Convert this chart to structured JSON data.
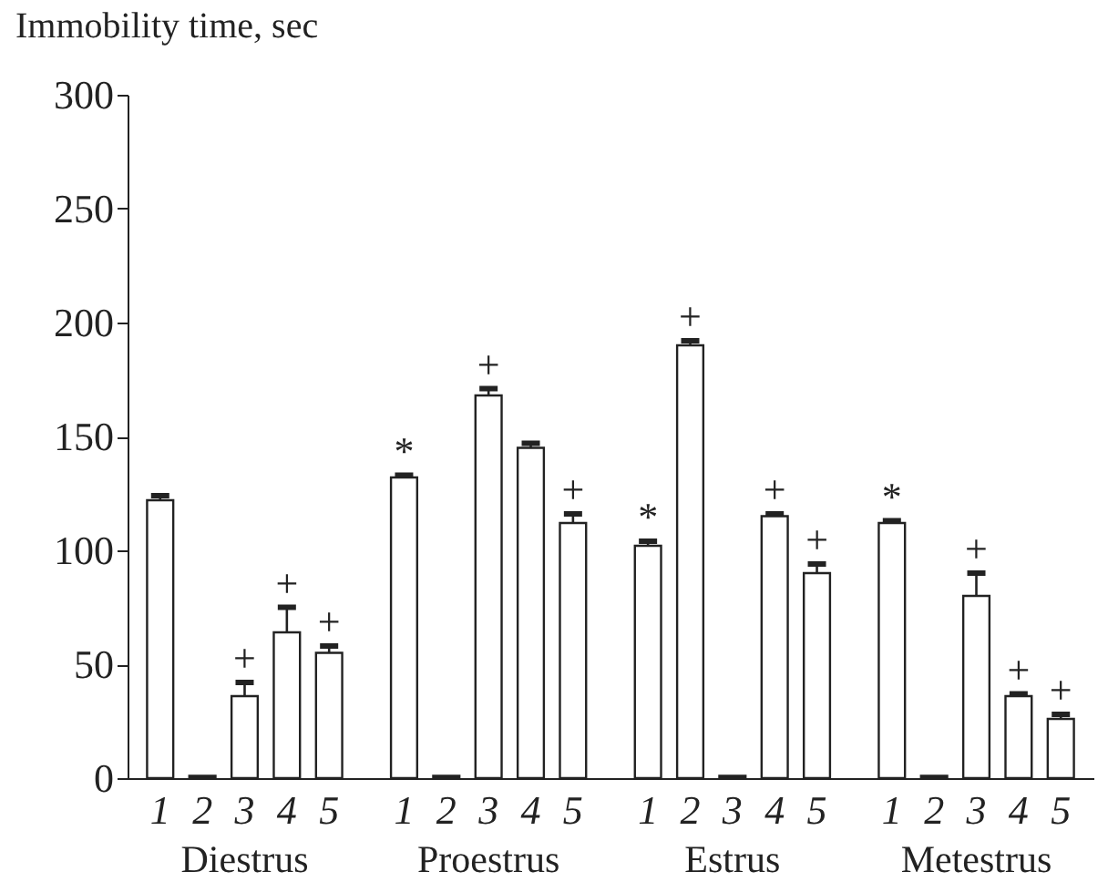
{
  "chart_data": {
    "type": "bar",
    "ylabel": "Immobility time, sec",
    "categories": [
      "Diestrus",
      "Proestrus",
      "Estrus",
      "Metestrus"
    ],
    "series": [
      {
        "name": "1",
        "color": "#ffffff",
        "values": [
          122,
          132,
          102,
          112
        ],
        "errors": [
          2,
          1,
          2,
          1
        ],
        "value_labels": [
          null,
          "*",
          "*",
          "*"
        ]
      },
      {
        "name": "2",
        "color": "#ffffff",
        "values": [
          1,
          1,
          190,
          1
        ],
        "errors": [
          null,
          null,
          2,
          null
        ],
        "value_labels": [
          null,
          null,
          "+",
          null
        ]
      },
      {
        "name": "3",
        "color": "#ffffff",
        "values": [
          36,
          168,
          1,
          80
        ],
        "errors": [
          6,
          3,
          null,
          10
        ],
        "value_labels": [
          "+",
          "+",
          null,
          "+"
        ]
      },
      {
        "name": "4",
        "color": "#ffffff",
        "values": [
          64,
          145,
          115,
          36
        ],
        "errors": [
          11,
          2,
          1,
          1
        ],
        "value_labels": [
          "+",
          null,
          "+",
          "+"
        ]
      },
      {
        "name": "5",
        "color": "#ffffff",
        "values": [
          55,
          112,
          90,
          26
        ],
        "errors": [
          3,
          4,
          4,
          2
        ],
        "value_labels": [
          "+",
          "+",
          "+",
          "+"
        ]
      }
    ],
    "ylim": [
      0,
      300
    ],
    "yticks": [
      0,
      50,
      100,
      150,
      200,
      250,
      300
    ],
    "grid": false
  }
}
